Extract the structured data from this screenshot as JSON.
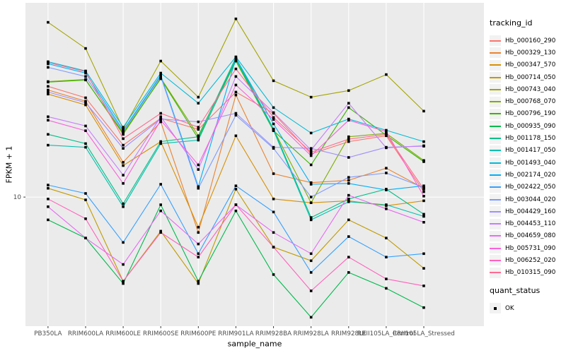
{
  "chart_data": {
    "type": "line",
    "title": "",
    "xlabel": "sample_name",
    "ylabel": "FPKM + 1",
    "y_scale": "log10",
    "ylim": [
      2.45,
      83
    ],
    "y_breaks": [
      10
    ],
    "y_tick_label": "10",
    "grid": "major-on",
    "panel_bg": "#EBEBEB",
    "grid_color": "#FFFFFF",
    "tick_text_color": "#4D4D4D",
    "marker_color": "#000000",
    "marker_shape": "square",
    "legend_position": "right",
    "legend_title": "tracking_id",
    "quant_legend": {
      "title": "quant_status",
      "items": [
        {
          "label": "OK",
          "marker": "filled-square"
        }
      ]
    },
    "categories": [
      "PB350LA",
      "RRIM600LA",
      "RRIM600LE",
      "RRIM600SE",
      "RRIM600PE",
      "RRIM901LA",
      "RRIM928BA",
      "RRIM928LA",
      "RRIM928LE",
      "RRII105LA_Control",
      "RRII105LA_Stressed"
    ],
    "series": [
      {
        "name": "Hb_000160_290",
        "color": "#F8766D",
        "values": [
          33.4,
          29.5,
          17.6,
          23.6,
          20.9,
          31.4,
          24.9,
          16.0,
          18.3,
          19.5,
          10.6
        ]
      },
      {
        "name": "Hb_000329_130",
        "color": "#EA8331",
        "values": [
          32.1,
          28.4,
          14.6,
          22.7,
          6.8,
          30.4,
          12.9,
          11.7,
          12.0,
          13.7,
          11.0
        ]
      },
      {
        "name": "Hb_000347_570",
        "color": "#D89000",
        "values": [
          30.7,
          27.3,
          14.1,
          18.3,
          7.2,
          19.5,
          9.8,
          9.4,
          9.6,
          9.1,
          9.6
        ]
      },
      {
        "name": "Hb_000714_050",
        "color": "#C09B00",
        "values": [
          11.0,
          9.7,
          4.0,
          6.9,
          3.9,
          10.9,
          5.8,
          5.0,
          7.8,
          6.4,
          4.6
        ]
      },
      {
        "name": "Hb_000743_040",
        "color": "#A3A500",
        "values": [
          67.1,
          50.5,
          21.0,
          44.0,
          29.7,
          69.7,
          35.5,
          29.7,
          31.9,
          38.0,
          25.5
        ]
      },
      {
        "name": "Hb_000768_070",
        "color": "#7CAE00",
        "values": [
          35.2,
          36.0,
          19.8,
          36.6,
          19.5,
          44.7,
          20.9,
          9.4,
          19.3,
          20.0,
          14.9
        ]
      },
      {
        "name": "Hb_000796_190",
        "color": "#39B600",
        "values": [
          35.0,
          35.8,
          20.1,
          36.3,
          18.9,
          44.0,
          20.6,
          14.2,
          26.5,
          19.6,
          14.7
        ]
      },
      {
        "name": "Hb_000935_090",
        "color": "#00BB4E",
        "values": [
          7.8,
          6.4,
          3.9,
          9.2,
          4.0,
          8.6,
          4.3,
          2.7,
          4.4,
          3.7,
          3.0
        ]
      },
      {
        "name": "Hb_001178_150",
        "color": "#00C087",
        "values": [
          19.8,
          17.9,
          9.3,
          18.3,
          19.3,
          45.7,
          21.0,
          8.0,
          9.8,
          10.9,
          8.3
        ]
      },
      {
        "name": "Hb_001417_050",
        "color": "#00C0AF",
        "values": [
          17.6,
          17.2,
          9.0,
          17.9,
          18.6,
          45.0,
          20.7,
          7.8,
          9.5,
          9.2,
          8.1
        ]
      },
      {
        "name": "Hb_001493_040",
        "color": "#00BCD8",
        "values": [
          43.7,
          39.5,
          21.4,
          38.6,
          27.8,
          46.1,
          26.5,
          20.1,
          23.4,
          20.7,
          18.3
        ]
      },
      {
        "name": "Hb_002174_020",
        "color": "#00B0F6",
        "values": [
          42.7,
          38.6,
          20.7,
          37.7,
          11.2,
          45.4,
          22.2,
          11.5,
          11.6,
          10.8,
          11.3
        ]
      },
      {
        "name": "Hb_002422_050",
        "color": "#35A2FF",
        "values": [
          11.4,
          10.4,
          6.1,
          11.5,
          5.4,
          11.3,
          8.5,
          4.4,
          6.5,
          5.2,
          5.4
        ]
      },
      {
        "name": "Hb_003044_020",
        "color": "#7C9AFF",
        "values": [
          41.1,
          37.2,
          20.4,
          37.2,
          11.0,
          24.4,
          17.0,
          10.0,
          12.4,
          13.0,
          11.1
        ]
      },
      {
        "name": "Hb_004429_160",
        "color": "#9F8FFF",
        "values": [
          31.4,
          28.0,
          17.0,
          23.4,
          22.7,
          24.9,
          17.2,
          17.0,
          15.4,
          17.2,
          17.4
        ]
      },
      {
        "name": "Hb_004453_110",
        "color": "#C77CFF",
        "values": [
          24.0,
          21.7,
          12.7,
          24.0,
          13.5,
          37.2,
          25.1,
          16.7,
          27.8,
          17.1,
          17.5
        ]
      },
      {
        "name": "Hb_004659_080",
        "color": "#E76BF3",
        "values": [
          9.0,
          6.4,
          4.8,
          8.6,
          6.0,
          9.2,
          6.8,
          5.4,
          10.2,
          8.8,
          7.6
        ]
      },
      {
        "name": "Hb_005731_090",
        "color": "#FA62DB",
        "values": [
          23.1,
          20.6,
          11.6,
          23.1,
          14.2,
          33.9,
          23.3,
          15.7,
          23.1,
          20.4,
          10.1
        ]
      },
      {
        "name": "Hb_006252_020",
        "color": "#FF62BC",
        "values": [
          9.8,
          7.9,
          4.0,
          6.8,
          5.2,
          9.2,
          5.8,
          3.6,
          5.2,
          4.1,
          3.8
        ]
      },
      {
        "name": "Hb_010315_090",
        "color": "#FF6C91",
        "values": [
          43.3,
          39.2,
          18.9,
          24.9,
          21.4,
          40.4,
          23.8,
          16.3,
          18.8,
          19.8,
          10.9
        ]
      }
    ]
  }
}
